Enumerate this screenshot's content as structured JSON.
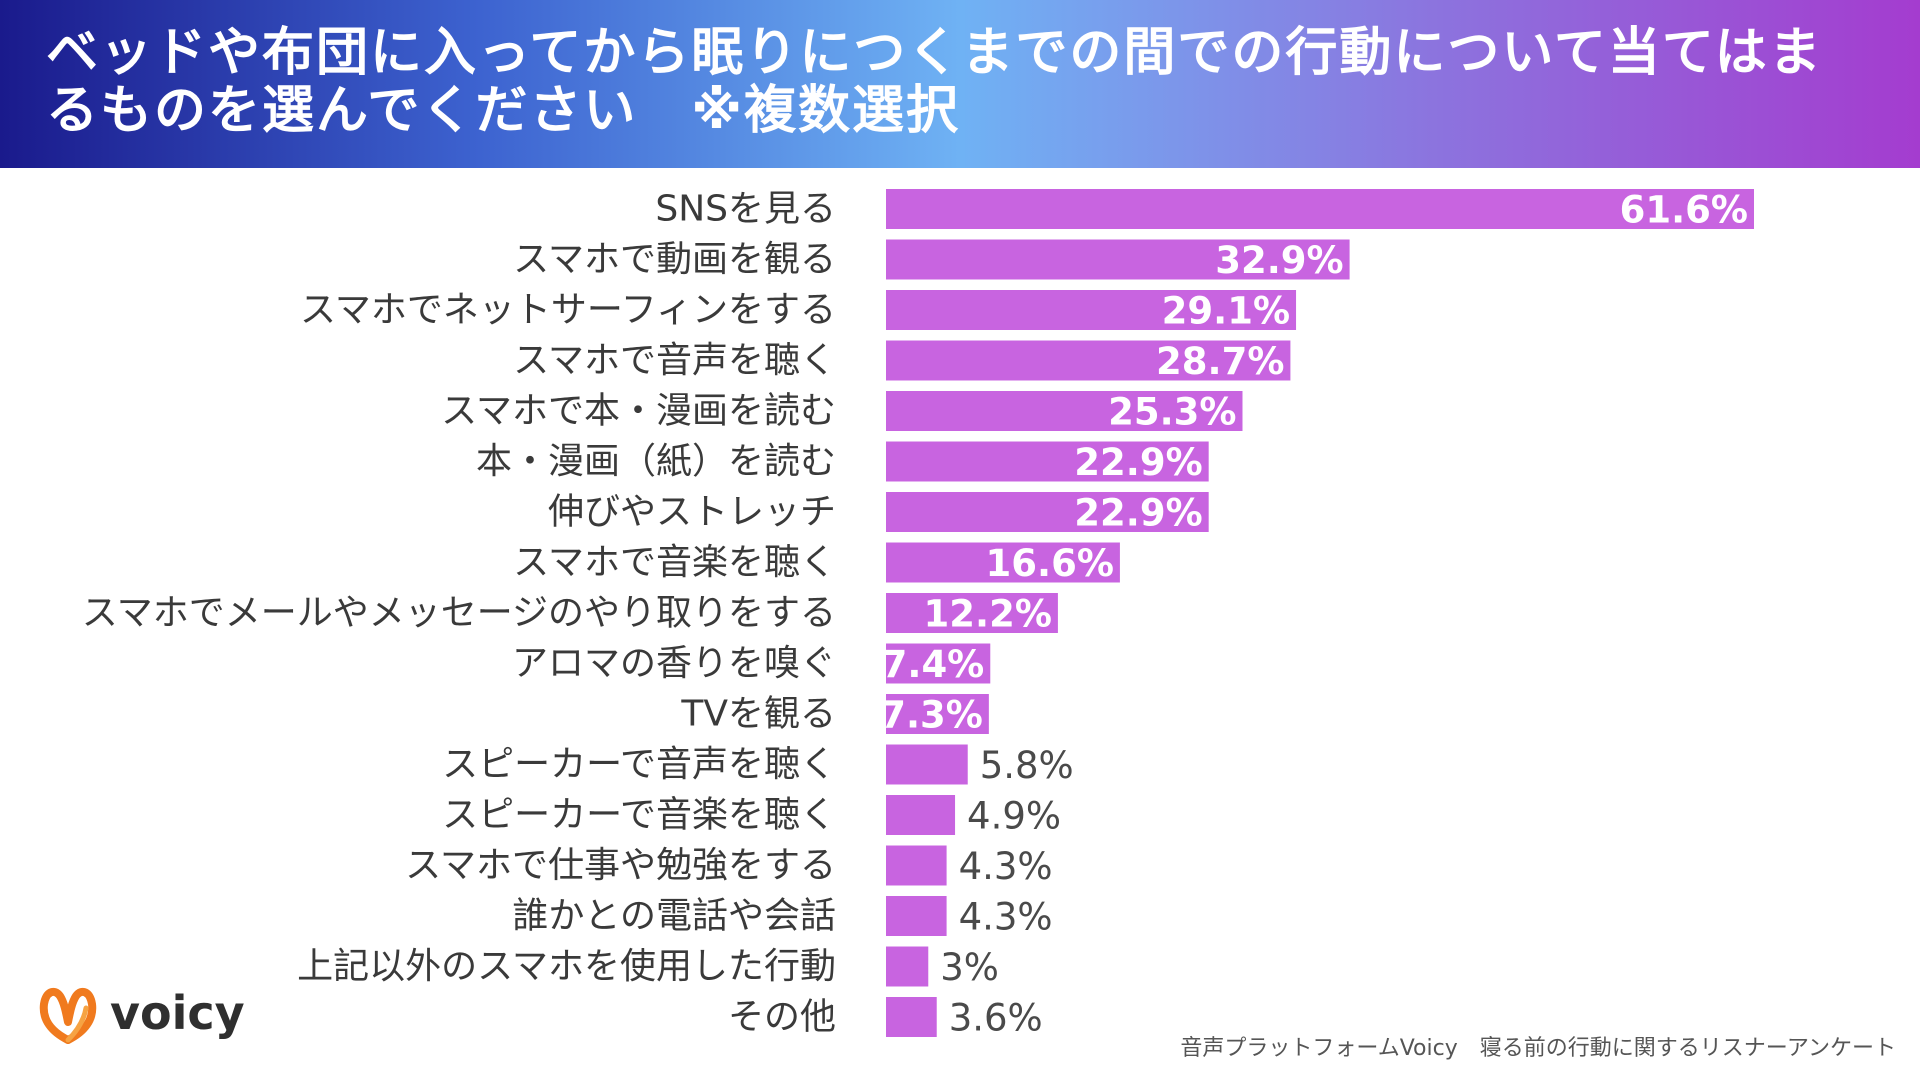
{
  "header": {
    "title": "ベッドや布団に入ってから眠りにつくまでの間での行動について当てはまるものを選んでください　※複数選択"
  },
  "colors": {
    "bar": "#c864e0",
    "label": "#3a3a3a",
    "value_outside": "#4a4a4a",
    "logo_orange": "#f07a1e",
    "logo_orange_light": "#f6a343"
  },
  "chart_data": {
    "type": "bar",
    "orientation": "horizontal",
    "title": "ベッドや布団に入ってから眠りにつくまでの間での行動について当てはまるものを選んでください　※複数選択",
    "xlabel": "",
    "ylabel": "",
    "xlim": [
      0,
      61.6
    ],
    "grid": false,
    "legend": "none",
    "categories": [
      "SNSを見る",
      "スマホで動画を観る",
      "スマホでネットサーフィンをする",
      "スマホで音声を聴く",
      "スマホで本・漫画を読む",
      "本・漫画（紙）を読む",
      "伸びやストレッチ",
      "スマホで音楽を聴く",
      "スマホでメールやメッセージのやり取りをする",
      "アロマの香りを嗅ぐ",
      "TVを観る",
      "スピーカーで音声を聴く",
      "スピーカーで音楽を聴く",
      "スマホで仕事や勉強をする",
      "誰かとの電話や会話",
      "上記以外のスマホを使用した行動",
      "その他"
    ],
    "values": [
      61.6,
      32.9,
      29.1,
      28.7,
      25.3,
      22.9,
      22.9,
      16.6,
      12.2,
      7.4,
      7.3,
      5.8,
      4.9,
      4.3,
      4.3,
      3,
      3.6
    ],
    "value_labels": [
      "61.6%",
      "32.9%",
      "29.1%",
      "28.7%",
      "25.3%",
      "22.9%",
      "22.9%",
      "16.6%",
      "12.2%",
      "7.4%",
      "7.3%",
      "5.8%",
      "4.9%",
      "4.3%",
      "4.3%",
      "3%",
      "3.6%"
    ],
    "label_inside": [
      true,
      true,
      true,
      true,
      true,
      true,
      true,
      true,
      true,
      true,
      true,
      false,
      false,
      false,
      false,
      false,
      false
    ]
  },
  "logo": {
    "text": "voicy",
    "icon": "voicy-logo-icon"
  },
  "footer": {
    "source": "音声プラットフォームVoicy　寝る前の行動に関するリスナーアンケート"
  }
}
